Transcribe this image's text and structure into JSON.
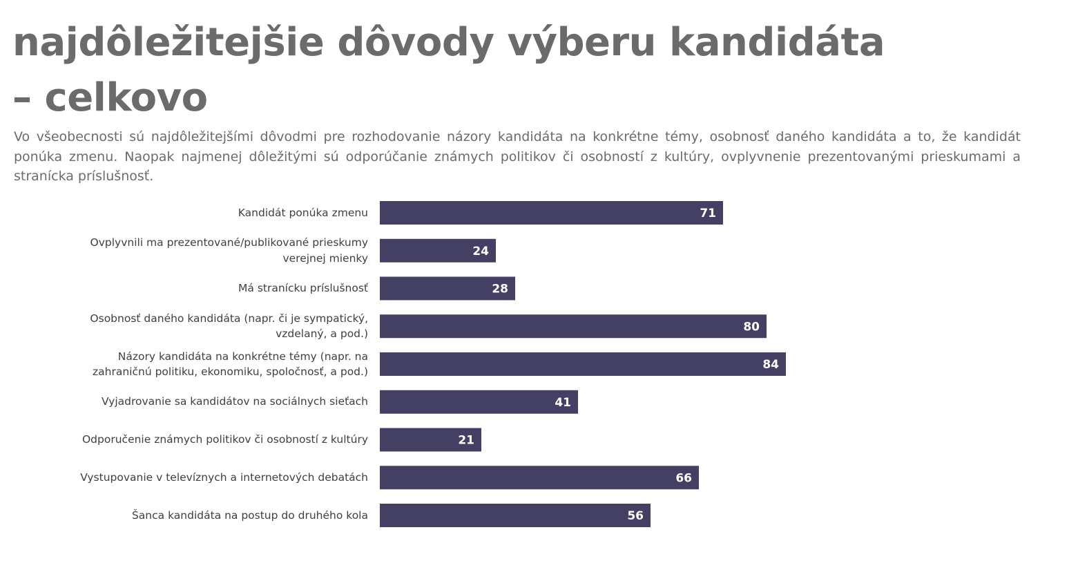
{
  "title": {
    "line1": "najdôležitejšie dôvody výberu kandidáta",
    "line2": "– celkovo"
  },
  "summary": "Vo všeobecnosti sú najdôležitejšími dôvodmi pre rozhodovanie názory kandidáta na konkrétne témy, osobnosť daného kandidáta a to, že kandidát ponúka zmenu. Naopak najmenej dôležitými sú odporúčanie známych politikov či osobností z kultúry, ovplyvnenie prezentovanými prieskumami a stranícka príslušnosť.",
  "colors": {
    "bar": "#434063",
    "bar_label": "#ffffff",
    "title": "#6b6b6b",
    "text": "#404040"
  },
  "chart_data": {
    "type": "bar",
    "orientation": "horizontal",
    "categories": [
      "Kandidát ponúka zmenu",
      "Ovplyvnili ma prezentované/publikované prieskumy verejnej mienky",
      "Má stranícku príslušnosť",
      "Osobnosť daného kandidáta (napr. či je sympatický, vzdelaný, a pod.)",
      "Názory kandidáta na konkrétne témy (napr. na zahraničnú politiku, ekonomiku, spoločnosť, a pod.)",
      "Vyjadrovanie sa kandidátov na sociálnych sieťach",
      "Odporučenie známych politikov či osobností z kultúry",
      "Vystupovanie v televíznych a internetových debatách",
      "Šanca kandidáta na postup do druhého kola"
    ],
    "values": [
      71,
      24,
      28,
      80,
      84,
      41,
      21,
      66,
      56
    ],
    "xlim": [
      0,
      100
    ],
    "grid": false,
    "data_labels": true
  }
}
